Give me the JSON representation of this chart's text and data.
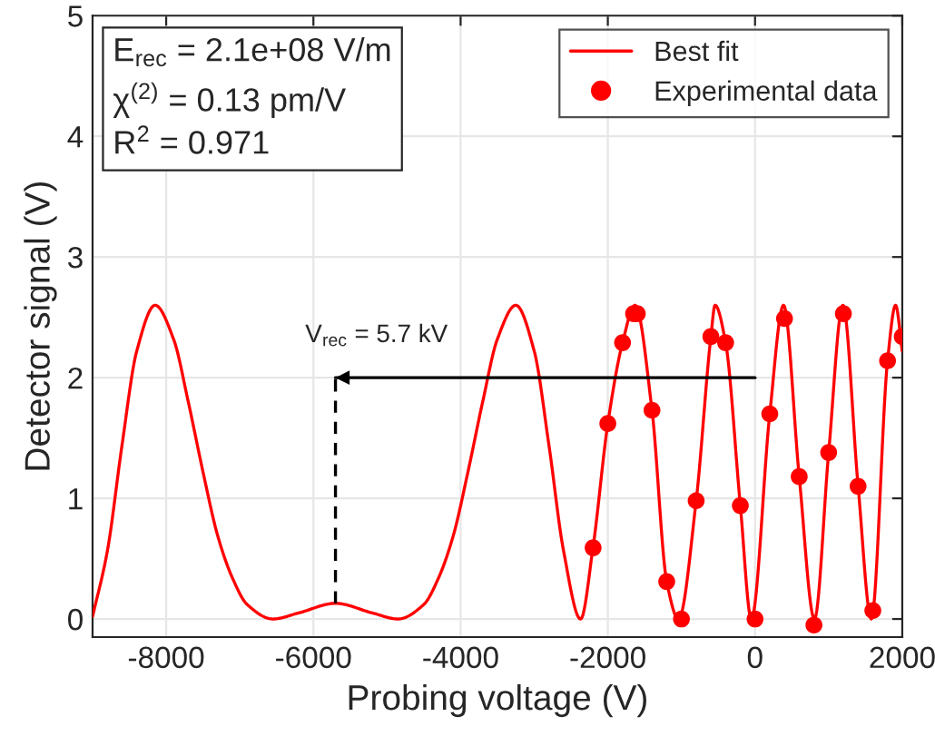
{
  "chart_data": {
    "type": "line",
    "xlabel": "Probing voltage (V)",
    "ylabel": "Detector signal (V)",
    "xlim": [
      -9000,
      2000
    ],
    "xticks": [
      -8000,
      -6000,
      -4000,
      -2000,
      0,
      2000
    ],
    "ylim": [
      -0.15,
      5
    ],
    "yticks": [
      0,
      1,
      2,
      3,
      4,
      5
    ],
    "grid": true,
    "legend": "top right",
    "annotations": [
      "E$_{rec}$ = 2.1e+08 V/m",
      "χ$^{(2)}$ = 0.13 pm/V",
      "R$^{2}$ = 0.971",
      {
        "text": "V$_{rec}$ = 5.7 kV",
        "x": -5700,
        "y": 2
      }
    ],
    "series": [
      {
        "name": "Best fit",
        "color": "#ff0000",
        "marker": "none",
        "line_style": "solid",
        "x": [
          -9000,
          -8800,
          -8600,
          -8400,
          -8150,
          -7900,
          -7700,
          -7500,
          -7300,
          -7100,
          -6900,
          -6550,
          -6200,
          -5700,
          -5200,
          -4850,
          -4500,
          -4300,
          -4100,
          -3900,
          -3700,
          -3500,
          -3250,
          -3000,
          -2800,
          -2600,
          -2370,
          -2200,
          -2000,
          -1800,
          -1630,
          -1400,
          -1200,
          -1040,
          -800,
          -600,
          -543,
          -400,
          -200,
          -50,
          200,
          387,
          600,
          807,
          1000,
          1193,
          1400,
          1580,
          1800,
          1909,
          2000
        ],
        "values": [
          0.02,
          0.56,
          1.44,
          2.22,
          2.6,
          2.32,
          1.8,
          1.22,
          0.69,
          0.34,
          0.12,
          0,
          0.05,
          0.13,
          0.05,
          0,
          0.12,
          0.34,
          0.69,
          1.22,
          1.8,
          2.32,
          2.6,
          2.22,
          1.44,
          0.56,
          0,
          0.6,
          1.62,
          2.29,
          2.6,
          1.73,
          0.31,
          0,
          0.98,
          2.34,
          2.6,
          2.29,
          0.94,
          0,
          1.7,
          2.6,
          1.18,
          0,
          1.38,
          2.6,
          1.1,
          0,
          2.14,
          2.6,
          2.22
        ]
      },
      {
        "name": "Experimental data",
        "type": "scatter",
        "color": "#ff0000",
        "marker": "circle",
        "x": [
          -2200,
          -2000,
          -1800,
          -1650,
          -1600,
          -1400,
          -1200,
          -1000,
          -800,
          -600,
          -400,
          -200,
          0,
          200,
          400,
          600,
          800,
          1000,
          1200,
          1400,
          1600,
          1800,
          2000
        ],
        "values": [
          0.59,
          1.62,
          2.29,
          2.53,
          2.53,
          1.73,
          0.31,
          0,
          0.98,
          2.34,
          2.29,
          0.94,
          0,
          1.7,
          2.49,
          1.18,
          -0.05,
          1.38,
          2.53,
          1.1,
          0.07,
          2.14,
          2.34
        ]
      },
      {
        "color": "#000000",
        "marker": "none",
        "line_style": "dashed",
        "x": [
          -5700,
          -5700
        ],
        "values": [
          0.13,
          2
        ]
      },
      {
        "color": "#000000",
        "marker": "none",
        "line_style": "solid",
        "x": [
          0,
          -5700
        ],
        "values": [
          2,
          2
        ]
      }
    ]
  }
}
